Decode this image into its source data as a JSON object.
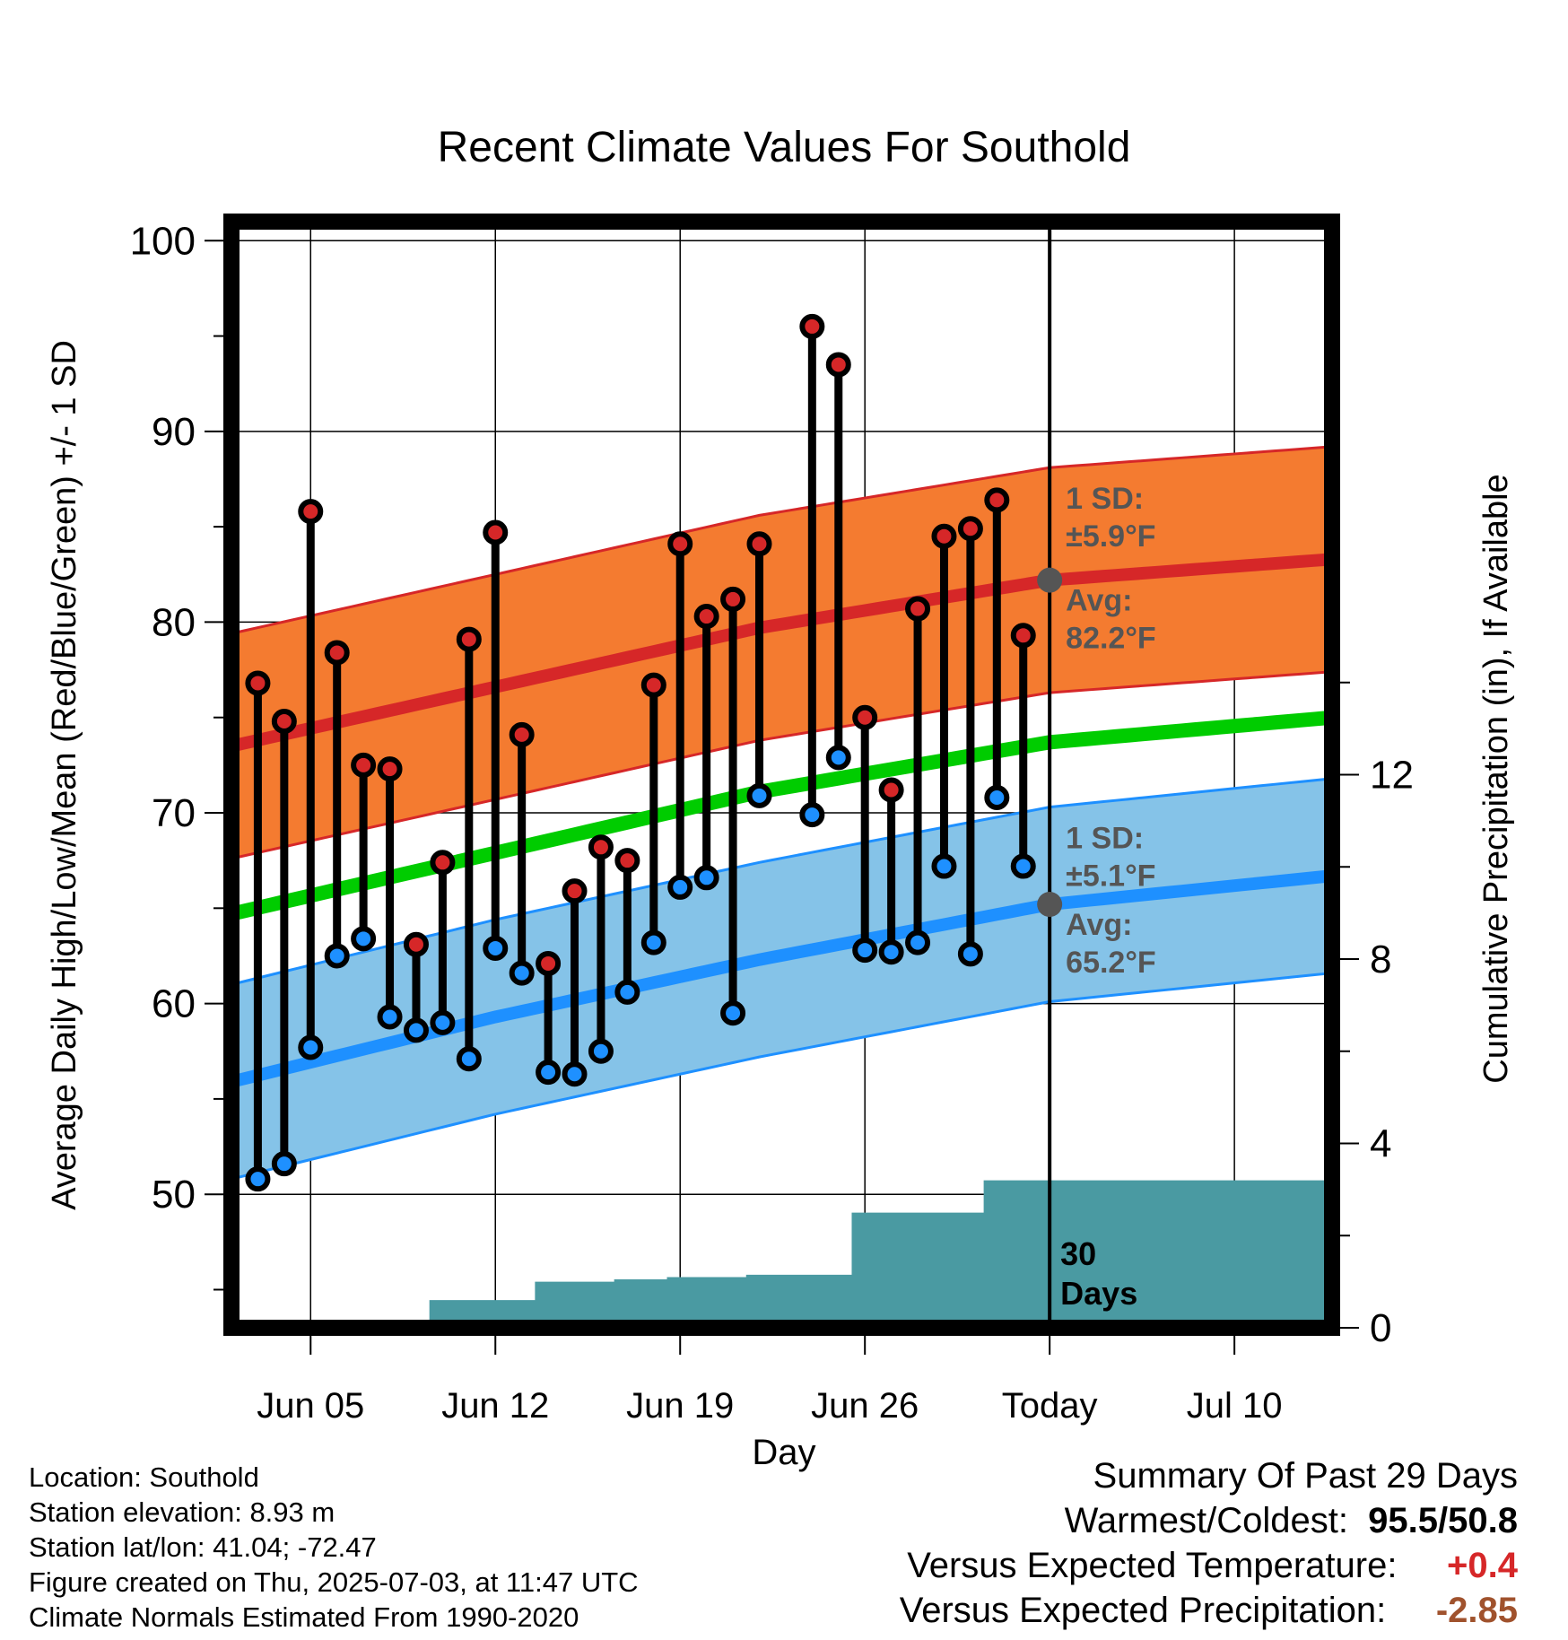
{
  "chart_data": {
    "type": "line",
    "title": "Recent Climate Values For Southold",
    "xlabel": "Day",
    "ylabel": "Average Daily High/Low/Mean (Red/Blue/Green) +/- 1 SD",
    "y2label": "Cumulative Precipitation (in), If Available",
    "ylim": [
      43,
      101
    ],
    "y2lim": [
      0,
      24
    ],
    "yticks": [
      50,
      60,
      70,
      80,
      90,
      100
    ],
    "y2ticks": [
      0,
      4,
      8,
      12
    ],
    "xlim": [
      0.0,
      41.7
    ],
    "x_ticks": [
      {
        "day": 3,
        "label": "Jun 05"
      },
      {
        "day": 10,
        "label": "Jun 12"
      },
      {
        "day": 17,
        "label": "Jun 19"
      },
      {
        "day": 24,
        "label": "Jun 26"
      },
      {
        "day": 31,
        "label": "Today"
      },
      {
        "day": 38,
        "label": "Jul 10"
      }
    ],
    "grid": true,
    "today_day": 31,
    "today_label_lines": [
      "30",
      "Days"
    ],
    "days": [
      1,
      2,
      3,
      4,
      5,
      6,
      7,
      8,
      9,
      10,
      11,
      12,
      13,
      14,
      15,
      16,
      17,
      18,
      19,
      20,
      21,
      22,
      23,
      24,
      25,
      26,
      27,
      28,
      29,
      30
    ],
    "highs": [
      76.8,
      74.8,
      85.8,
      78.4,
      72.5,
      72.3,
      63.1,
      67.4,
      79.1,
      84.7,
      74.1,
      62.1,
      65.9,
      68.2,
      67.5,
      76.7,
      84.1,
      80.3,
      81.2,
      84.1,
      null,
      95.5,
      93.5,
      75.0,
      71.2,
      80.7,
      84.5,
      84.9,
      86.4,
      79.3
    ],
    "lows": [
      50.8,
      51.6,
      57.7,
      62.5,
      63.4,
      59.3,
      58.6,
      59.0,
      57.1,
      62.9,
      61.6,
      56.4,
      56.3,
      57.5,
      60.6,
      63.2,
      66.1,
      66.6,
      59.5,
      70.9,
      null,
      69.9,
      72.9,
      62.8,
      62.7,
      63.2,
      67.2,
      62.6,
      70.8,
      67.2
    ],
    "normal_high": {
      "x": [
        0,
        10,
        20,
        31,
        41.7
      ],
      "y": [
        73.5,
        76.6,
        79.7,
        82.2,
        83.3
      ]
    },
    "normal_low": {
      "x": [
        0,
        10,
        20,
        31,
        41.7
      ],
      "y": [
        55.9,
        59.3,
        62.3,
        65.2,
        66.7
      ]
    },
    "normal_mean": {
      "x": [
        0,
        10,
        20,
        31,
        41.7
      ],
      "y": [
        64.7,
        67.9,
        71.1,
        73.7,
        75.0
      ]
    },
    "sd_high": 5.9,
    "sd_low": 5.1,
    "precip_cumulative": [
      0,
      0,
      0,
      0,
      0,
      0,
      0.05,
      0.6,
      0.6,
      0.6,
      0.6,
      1.0,
      1.0,
      1.0,
      1.05,
      1.05,
      1.1,
      1.1,
      1.1,
      1.15,
      1.15,
      1.15,
      1.15,
      2.5,
      2.5,
      2.5,
      2.5,
      2.5,
      3.2,
      3.2
    ],
    "annotations": {
      "high_sd": {
        "line1": "1 SD:",
        "line2": "±5.9°F"
      },
      "high_avg": {
        "line1": "Avg:",
        "line2": "82.2°F"
      },
      "low_sd": {
        "line1": "1 SD:",
        "line2": "±5.1°F"
      },
      "low_avg": {
        "line1": "Avg:",
        "line2": "65.2°F"
      }
    },
    "colors": {
      "high_band": "#f47b30",
      "high_line": "#d62728",
      "low_band": "#85c3e8",
      "low_line": "#1e90ff",
      "mean_line": "#00cc00",
      "precip": "#4a9aa2",
      "high_marker": "#d62728",
      "low_marker": "#1e90ff",
      "annotation_text": "#555555",
      "avg_dot": "#555555"
    }
  },
  "info": {
    "location": "Location: Southold",
    "elevation": "Station elevation: 8.93 m",
    "latlon": "Station lat/lon: 41.04; -72.47",
    "created": "Figure created on Thu, 2025-07-03, at 11:47 UTC",
    "normals": "Climate Normals Estimated From 1990-2020"
  },
  "summary": {
    "title": "Summary Of Past 29 Days",
    "warmest_label": "Warmest/Coldest:",
    "warmest_value": "95.5/50.8",
    "temp_label": "Versus Expected Temperature:",
    "temp_value": "+0.4",
    "temp_color": "#d62728",
    "precip_label": "Versus Expected Precipitation:",
    "precip_value": "-2.85",
    "precip_color": "#a0522d"
  }
}
